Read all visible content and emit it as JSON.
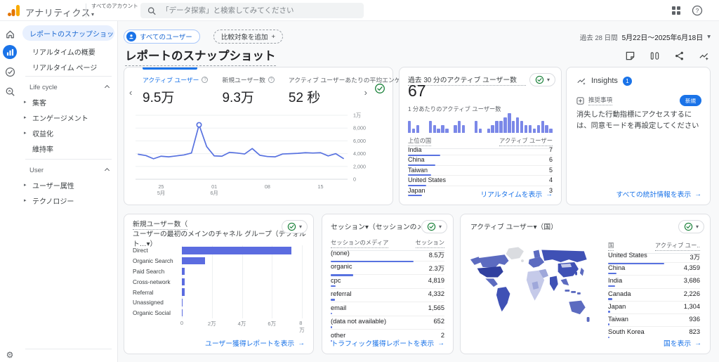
{
  "topbar": {
    "app_title": "アナリティクス",
    "account_switcher": "すべてのアカウント",
    "search_placeholder": "「データ探索」と検索してみてください"
  },
  "icons": {
    "caret_down": "▾",
    "chevron_left": "‹",
    "chevron_right": "›",
    "arrow_right": "→",
    "plus": "+",
    "expand_arrow": "▸",
    "gear": "⚙",
    "help": "?"
  },
  "sidebar": {
    "items": [
      {
        "label": "レポートのスナップショット",
        "selected": true
      },
      {
        "label": "リアルタイムの概要",
        "selected": false
      },
      {
        "label": "リアルタイム ページ",
        "selected": false
      }
    ],
    "sections": [
      {
        "title": "Life cycle",
        "items": [
          {
            "label": "集客",
            "expandable": true
          },
          {
            "label": "エンゲージメント",
            "expandable": true
          },
          {
            "label": "収益化",
            "expandable": true
          },
          {
            "label": "維持率",
            "expandable": false
          }
        ]
      },
      {
        "title": "User",
        "items": [
          {
            "label": "ユーザー属性",
            "expandable": true
          },
          {
            "label": "テクノロジー",
            "expandable": true
          }
        ]
      }
    ]
  },
  "header": {
    "audience_pill": "すべてのユーザー",
    "add_comparison": "比較対象を追加",
    "date_range_label": "過去 28 日間",
    "date_range_value": "5月22日～2025年6月18日",
    "page_title": "レポートのスナップショット"
  },
  "cards": {
    "overview": {
      "tabs": [
        {
          "label": "アクティブ ユーザー",
          "value": "9.5万",
          "selected": true
        },
        {
          "label": "新規ユーザー数",
          "value": "9.3万",
          "selected": false
        },
        {
          "label": "アクティブ ユーザーあたりの平均エンゲー",
          "value": "52 秒",
          "selected": false
        }
      ]
    },
    "realtime": {
      "title": "過去 30 分のアクティブ ユーザー数",
      "value": "67",
      "subtitle": "1 分あたりのアクティブ ユーザー数",
      "table_headers": [
        "上位の国",
        "アクティブ ユーザー"
      ],
      "rows": [
        {
          "label": "India",
          "value": "7",
          "num": 7
        },
        {
          "label": "China",
          "value": "6",
          "num": 6
        },
        {
          "label": "Taiwan",
          "value": "5",
          "num": 5
        },
        {
          "label": "United States",
          "value": "4",
          "num": 4
        },
        {
          "label": "Japan",
          "value": "3",
          "num": 3
        }
      ],
      "footer": "リアルタイムを表示"
    },
    "insights": {
      "title": "Insights",
      "badge": "1",
      "category": "推奨事項",
      "new_badge": "新規",
      "message": "消失した行動指標にアクセスするには、同意モードを再設定してください",
      "footer": "すべての統計情報を表示"
    },
    "new_users": {
      "title_line1": "新規ユーザー数（",
      "title_line2": "ユーザーの最初のメインのチャネル グループ（デフォルト…▾）",
      "footer": "ユーザー獲得レポートを表示"
    },
    "sessions": {
      "title": "セッション▾（セッションのメディア▾）",
      "table_headers": [
        "セッションのメディア",
        "セッション"
      ],
      "rows": [
        {
          "label": "(none)",
          "value": "8.5万",
          "num": 85000
        },
        {
          "label": "organic",
          "value": "2.3万",
          "num": 23000
        },
        {
          "label": "cpc",
          "value": "4,819",
          "num": 4819
        },
        {
          "label": "referral",
          "value": "4,332",
          "num": 4332
        },
        {
          "label": "email",
          "value": "1,565",
          "num": 1565
        },
        {
          "label": "(data not available)",
          "value": "652",
          "num": 652
        },
        {
          "label": "other",
          "value": "2",
          "num": 2
        }
      ],
      "footer": "トラフィック獲得レポートを表示"
    },
    "countries": {
      "title": "アクティブ ユーザー▾（国）",
      "table_headers": [
        "国",
        "アクティブ ユー.."
      ],
      "rows": [
        {
          "label": "United States",
          "value": "3万",
          "num": 30000
        },
        {
          "label": "China",
          "value": "4,359",
          "num": 4359
        },
        {
          "label": "India",
          "value": "3,686",
          "num": 3686
        },
        {
          "label": "Canada",
          "value": "2,226",
          "num": 2226
        },
        {
          "label": "Japan",
          "value": "1,304",
          "num": 1304
        },
        {
          "label": "Taiwan",
          "value": "936",
          "num": 936
        },
        {
          "label": "South Korea",
          "value": "823",
          "num": 823
        }
      ],
      "footer": "国を表示"
    }
  },
  "chart_data": [
    {
      "id": "active-users-trend",
      "type": "line",
      "title": "アクティブ ユーザー（日別）",
      "x_tick_labels": [
        {
          "pos": 3,
          "line1": "25",
          "line2": "5月"
        },
        {
          "pos": 10,
          "line1": "01",
          "line2": "6月"
        },
        {
          "pos": 17,
          "line1": "08"
        },
        {
          "pos": 24,
          "line1": "15"
        }
      ],
      "y_ticks": [
        0,
        2000,
        4000,
        6000,
        8000,
        10000
      ],
      "y_tick_labels": [
        "0",
        "2,000",
        "4,000",
        "6,000",
        "8,000",
        "1万"
      ],
      "ylim": [
        0,
        10000
      ],
      "values": [
        3900,
        3700,
        3200,
        3600,
        3500,
        3650,
        3800,
        4100,
        8500,
        5100,
        3650,
        3600,
        4200,
        4100,
        3950,
        4800,
        3750,
        3550,
        3500,
        3950,
        4000,
        4050,
        4150,
        4100,
        4150,
        3650,
        4000,
        3250
      ],
      "highlight_index": 8,
      "grid": true,
      "legend": false
    },
    {
      "id": "realtime-users-per-minute",
      "type": "bar",
      "title": "1 分あたりのアクティブ ユーザー数",
      "values": [
        3,
        1,
        2,
        0,
        0,
        3,
        2,
        1,
        2,
        1,
        0,
        2,
        3,
        2,
        0,
        0,
        3,
        1,
        0,
        1,
        2,
        3,
        3,
        4,
        5,
        3,
        4,
        3,
        2,
        2,
        1,
        2,
        3,
        2,
        1
      ],
      "ylim": [
        0,
        5
      ]
    },
    {
      "id": "new-users-by-channel",
      "type": "bar",
      "orientation": "horizontal",
      "categories": [
        "Direct",
        "Organic Search",
        "Paid Search",
        "Cross-network",
        "Referral",
        "Unassigned",
        "Organic Social"
      ],
      "values": [
        73000,
        15500,
        2000,
        1800,
        1700,
        700,
        300
      ],
      "x_ticks": [
        0,
        20000,
        40000,
        60000,
        80000
      ],
      "x_tick_labels": [
        "0",
        "2万",
        "4万",
        "6万",
        "8万"
      ],
      "xlim": [
        0,
        80000
      ]
    }
  ],
  "colors": {
    "accent": "#1a73e8",
    "text": "#202124",
    "muted": "#5f6368",
    "border": "#dadce0",
    "chart_line": "#5872e0",
    "chart_bar": "#5b6ce0",
    "spark_bar": "#7b88e8",
    "green_check": "#188038",
    "selected_bg": "#e8f0fe",
    "logo_orange": "#f9ab00",
    "logo_dark_orange": "#e37400",
    "map_scale": [
      "#303f9f",
      "#3f51b5",
      "#5c6bc0",
      "#9fa8da",
      "#c5cae9",
      "#dadce0"
    ]
  }
}
